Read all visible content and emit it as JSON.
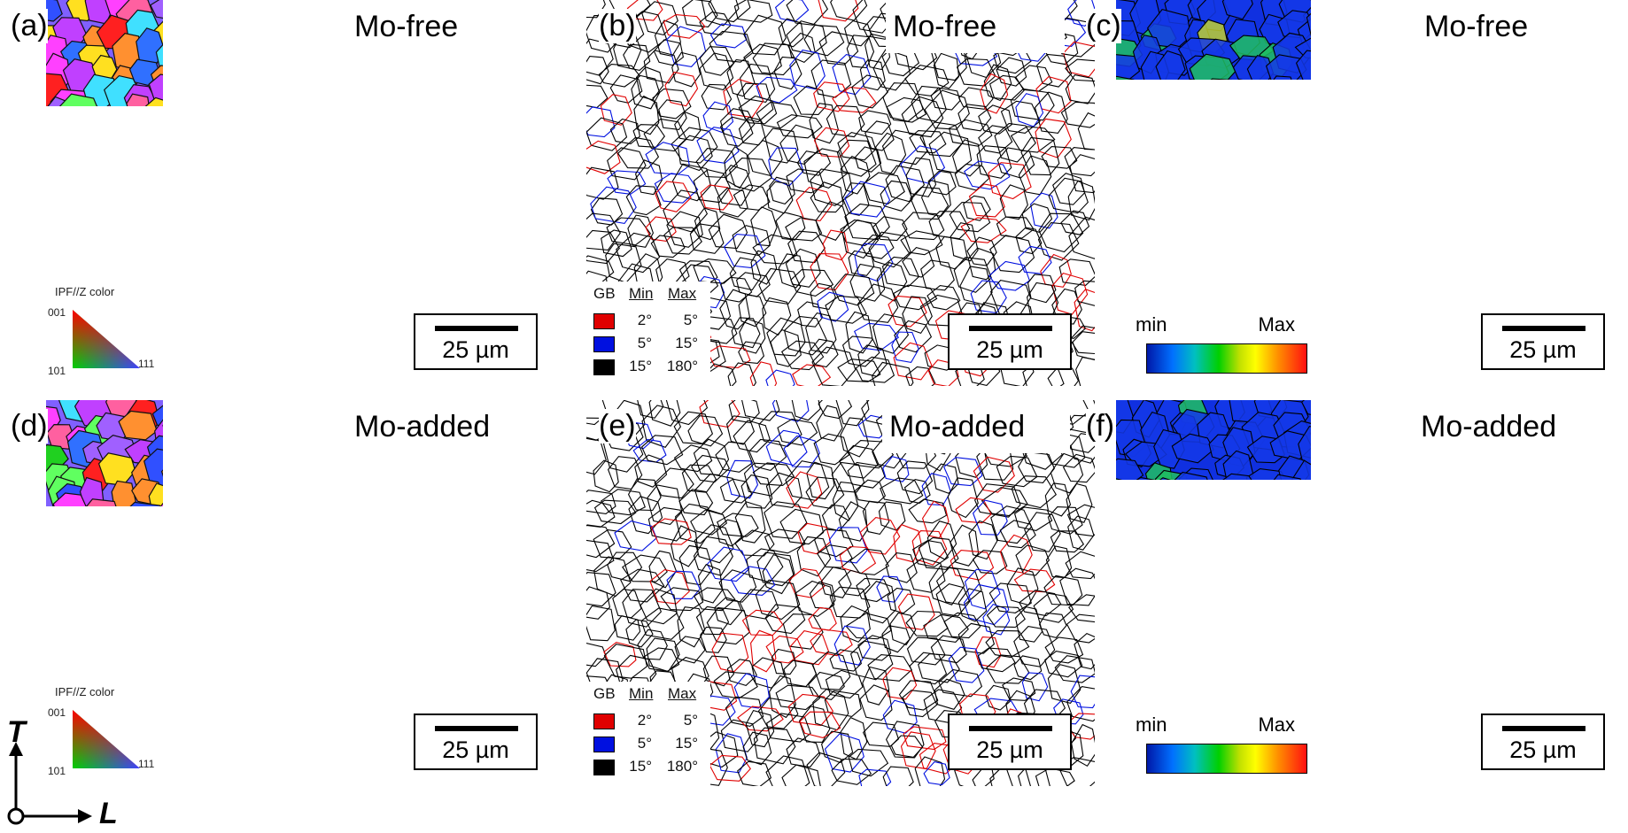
{
  "figure": {
    "panels": [
      {
        "label": "(a)",
        "title": "Mo-free",
        "type": "ipf",
        "scale": "25 µm"
      },
      {
        "label": "(b)",
        "title": "Mo-free",
        "type": "gb",
        "scale": "25 µm"
      },
      {
        "label": "(c)",
        "title": "Mo-free",
        "type": "kam",
        "scale": "25 µm"
      },
      {
        "label": "(d)",
        "title": "Mo-added",
        "type": "ipf",
        "scale": "25 µm"
      },
      {
        "label": "(e)",
        "title": "Mo-added",
        "type": "gb",
        "scale": "25 µm"
      },
      {
        "label": "(f)",
        "title": "Mo-added",
        "type": "kam",
        "scale": "25 µm"
      }
    ],
    "ipf_legend": {
      "title": "IPF//Z color",
      "c001": "001",
      "c101": "101",
      "c111": "111"
    },
    "gb_legend": {
      "header": {
        "gb": "GB",
        "min": "Min",
        "max": "Max"
      },
      "rows": [
        {
          "color": "#e00000",
          "min": "2°",
          "max": "5°"
        },
        {
          "color": "#0010e0",
          "min": "5°",
          "max": "15°"
        },
        {
          "color": "#000000",
          "min": "15°",
          "max": "180°"
        }
      ]
    },
    "kam_legend": {
      "min": "min",
      "max": "Max"
    },
    "axes": {
      "t": "T",
      "l": "L"
    },
    "colors": {
      "ipf_palette": [
        "#ff2020",
        "#20d020",
        "#3050ff",
        "#ff40ff",
        "#40e0ff",
        "#a060ff",
        "#ffe020",
        "#ff9030",
        "#60ff60",
        "#3070ff",
        "#c040ff",
        "#ff60a0"
      ],
      "kam_background": "#1030e0",
      "gb_low": "#e00000",
      "gb_mid": "#0010e0",
      "gb_high": "#000000"
    }
  }
}
